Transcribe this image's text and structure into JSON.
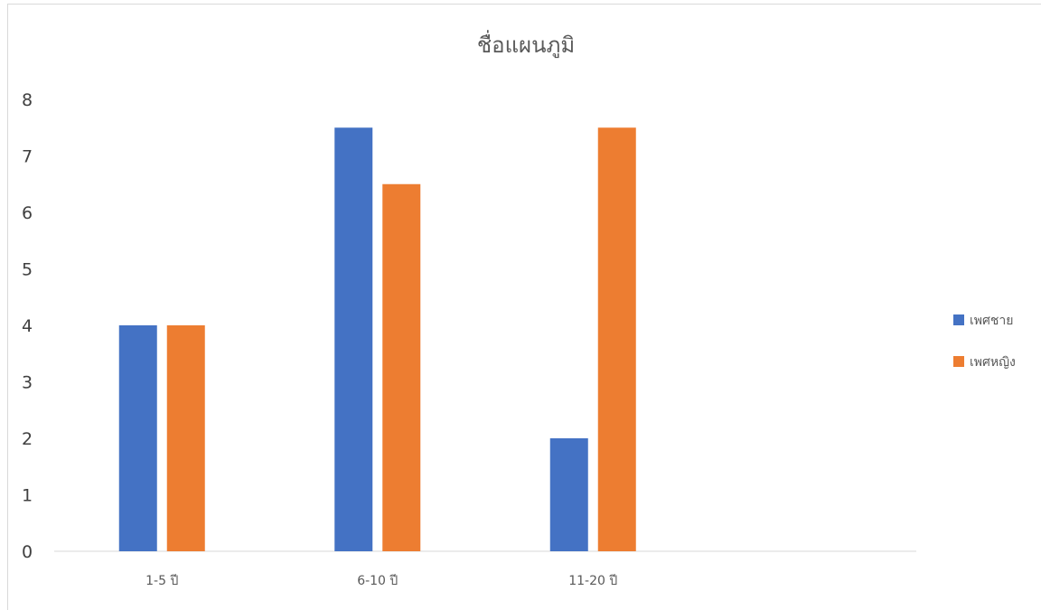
{
  "chart_data": {
    "type": "bar",
    "title": "ชื่อแผนภูมิ",
    "categories": [
      "1-5 ปี",
      "6-10 ปี",
      "11-20 ปี"
    ],
    "series": [
      {
        "name": "เพศชาย",
        "color": "#4472C4",
        "values": [
          4,
          7.5,
          2
        ]
      },
      {
        "name": "เพศหญิง",
        "color": "#ED7D31",
        "values": [
          4,
          6.5,
          7.5
        ]
      }
    ],
    "y_ticks": [
      "0",
      "1",
      "2",
      "3",
      "4",
      "5",
      "6",
      "7",
      "8"
    ],
    "ylim": [
      0,
      8
    ],
    "xlabel": "",
    "ylabel": "",
    "grid": false,
    "legend_position": "right"
  }
}
